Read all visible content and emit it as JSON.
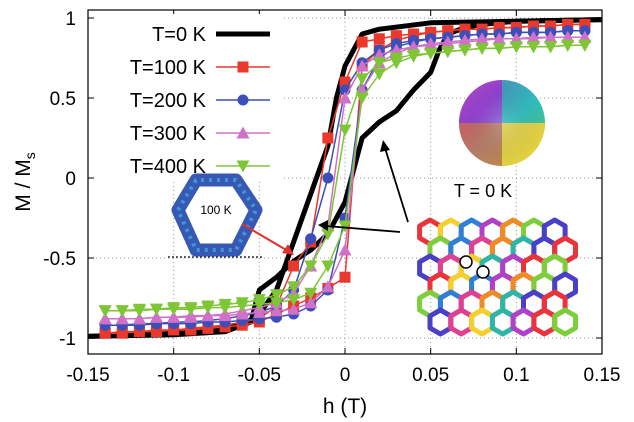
{
  "chart_data": {
    "type": "line",
    "title": "",
    "xlabel": "h (T)",
    "ylabel_main": "M / M",
    "ylabel_sub": "s",
    "xlim": [
      -0.15,
      0.15
    ],
    "ylim": [
      -1.1,
      1.05
    ],
    "x_ticks": [
      "-0.15",
      "-0.1",
      "-0.05",
      "0",
      "0.05",
      "0.1",
      "0.15"
    ],
    "x_tick_values": [
      -0.15,
      -0.1,
      -0.05,
      0,
      0.05,
      0.1,
      0.15
    ],
    "y_ticks": [
      "-1",
      "-0.5",
      "0",
      "0.5",
      "1"
    ],
    "y_tick_values": [
      -1,
      -0.5,
      0,
      0.5,
      1
    ],
    "grid": true,
    "legend_position": "top-left",
    "series": [
      {
        "name": "T=0 K",
        "color": "#000000",
        "marker": "none",
        "up": {
          "x": [
            -0.15,
            -0.1,
            -0.07,
            -0.055,
            -0.05,
            -0.04,
            -0.03,
            -0.02,
            -0.01,
            0.0,
            0.005,
            0.01,
            0.02,
            0.03,
            0.04,
            0.05,
            0.055,
            0.06,
            0.07,
            0.08,
            0.1,
            0.15
          ],
          "y": [
            -0.99,
            -0.98,
            -0.96,
            -0.9,
            -0.7,
            -0.62,
            -0.52,
            -0.45,
            -0.35,
            -0.15,
            0.05,
            0.25,
            0.35,
            0.42,
            0.55,
            0.66,
            0.8,
            0.9,
            0.94,
            0.96,
            0.98,
            0.99
          ]
        },
        "down": {
          "x": [
            0.15,
            0.1,
            0.05,
            0.02,
            0.01,
            0.0,
            -0.005,
            -0.01,
            -0.02,
            -0.03,
            -0.04,
            -0.05,
            -0.06,
            -0.08,
            -0.1,
            -0.15
          ],
          "y": [
            0.99,
            0.98,
            0.97,
            0.93,
            0.9,
            0.7,
            0.5,
            0.2,
            -0.1,
            -0.4,
            -0.7,
            -0.85,
            -0.92,
            -0.95,
            -0.97,
            -0.99
          ]
        }
      },
      {
        "name": "T=100 K",
        "color": "#e8392c",
        "marker": "square",
        "up": {
          "x": [
            -0.14,
            -0.13,
            -0.12,
            -0.11,
            -0.1,
            -0.09,
            -0.08,
            -0.07,
            -0.06,
            -0.05,
            -0.04,
            -0.03,
            -0.02,
            -0.01,
            0.0,
            0.01,
            0.02,
            0.03,
            0.04,
            0.05,
            0.06,
            0.07,
            0.08,
            0.09,
            0.1,
            0.11,
            0.12,
            0.13,
            0.14
          ],
          "y": [
            -0.97,
            -0.97,
            -0.96,
            -0.96,
            -0.95,
            -0.95,
            -0.94,
            -0.93,
            -0.92,
            -0.9,
            -0.85,
            -0.8,
            -0.75,
            -0.69,
            -0.62,
            0.7,
            0.8,
            0.86,
            0.89,
            0.91,
            0.92,
            0.93,
            0.93,
            0.94,
            0.94,
            0.95,
            0.95,
            0.96,
            0.96
          ]
        },
        "down": {
          "x": [
            0.14,
            0.13,
            0.12,
            0.11,
            0.1,
            0.09,
            0.08,
            0.07,
            0.06,
            0.05,
            0.04,
            0.03,
            0.02,
            0.01,
            0.0,
            -0.01,
            -0.02,
            -0.03,
            -0.04,
            -0.05,
            -0.06,
            -0.07,
            -0.08,
            -0.09,
            -0.1,
            -0.11,
            -0.12,
            -0.13,
            -0.14
          ],
          "y": [
            0.96,
            0.96,
            0.95,
            0.95,
            0.94,
            0.94,
            0.93,
            0.93,
            0.92,
            0.91,
            0.9,
            0.89,
            0.87,
            0.85,
            0.6,
            0.25,
            -0.4,
            -0.55,
            -0.8,
            -0.88,
            -0.9,
            -0.92,
            -0.93,
            -0.94,
            -0.95,
            -0.95,
            -0.96,
            -0.96,
            -0.97
          ]
        }
      },
      {
        "name": "T=200 K",
        "color": "#3c4fb8",
        "marker": "circle",
        "up": {
          "x": [
            -0.14,
            -0.13,
            -0.12,
            -0.11,
            -0.1,
            -0.09,
            -0.08,
            -0.07,
            -0.06,
            -0.05,
            -0.04,
            -0.03,
            -0.02,
            -0.01,
            0.0,
            0.01,
            0.02,
            0.03,
            0.04,
            0.05,
            0.06,
            0.07,
            0.08,
            0.09,
            0.1,
            0.11,
            0.12,
            0.13,
            0.14
          ],
          "y": [
            -0.92,
            -0.92,
            -0.92,
            -0.91,
            -0.91,
            -0.91,
            -0.9,
            -0.9,
            -0.89,
            -0.88,
            -0.87,
            -0.85,
            -0.8,
            -0.7,
            -0.25,
            0.55,
            0.75,
            0.82,
            0.85,
            0.87,
            0.88,
            0.89,
            0.9,
            0.9,
            0.91,
            0.91,
            0.91,
            0.92,
            0.92
          ]
        },
        "down": {
          "x": [
            0.14,
            0.13,
            0.12,
            0.11,
            0.1,
            0.09,
            0.08,
            0.07,
            0.06,
            0.05,
            0.04,
            0.03,
            0.02,
            0.01,
            0.0,
            -0.01,
            -0.02,
            -0.03,
            -0.04,
            -0.05,
            -0.06,
            -0.07,
            -0.08,
            -0.09,
            -0.1,
            -0.11,
            -0.12,
            -0.13,
            -0.14
          ],
          "y": [
            0.92,
            0.92,
            0.91,
            0.91,
            0.91,
            0.9,
            0.9,
            0.89,
            0.88,
            0.87,
            0.86,
            0.84,
            0.8,
            0.72,
            0.55,
            0.0,
            -0.38,
            -0.7,
            -0.8,
            -0.84,
            -0.86,
            -0.88,
            -0.89,
            -0.9,
            -0.9,
            -0.91,
            -0.91,
            -0.92,
            -0.92
          ]
        }
      },
      {
        "name": "T=300 K",
        "color": "#d070c8",
        "marker": "triangle",
        "up": {
          "x": [
            -0.14,
            -0.13,
            -0.12,
            -0.11,
            -0.1,
            -0.09,
            -0.08,
            -0.07,
            -0.06,
            -0.05,
            -0.04,
            -0.03,
            -0.02,
            -0.01,
            0.0,
            0.01,
            0.02,
            0.03,
            0.04,
            0.05,
            0.06,
            0.07,
            0.08,
            0.09,
            0.1,
            0.11,
            0.12,
            0.13,
            0.14
          ],
          "y": [
            -0.88,
            -0.88,
            -0.88,
            -0.87,
            -0.87,
            -0.87,
            -0.86,
            -0.86,
            -0.85,
            -0.84,
            -0.83,
            -0.82,
            -0.78,
            -0.68,
            -0.45,
            0.55,
            0.72,
            0.78,
            0.82,
            0.84,
            0.85,
            0.86,
            0.87,
            0.87,
            0.87,
            0.88,
            0.88,
            0.88,
            0.88
          ]
        },
        "down": {
          "x": [
            0.14,
            0.13,
            0.12,
            0.11,
            0.1,
            0.09,
            0.08,
            0.07,
            0.06,
            0.05,
            0.04,
            0.03,
            0.02,
            0.01,
            0.0,
            -0.01,
            -0.02,
            -0.03,
            -0.04,
            -0.05,
            -0.06,
            -0.07,
            -0.08,
            -0.09,
            -0.1,
            -0.11,
            -0.12,
            -0.13,
            -0.14
          ],
          "y": [
            0.88,
            0.88,
            0.88,
            0.87,
            0.87,
            0.87,
            0.86,
            0.85,
            0.84,
            0.83,
            0.82,
            0.8,
            0.77,
            0.7,
            0.5,
            -0.3,
            -0.55,
            -0.72,
            -0.78,
            -0.81,
            -0.83,
            -0.85,
            -0.86,
            -0.86,
            -0.87,
            -0.87,
            -0.88,
            -0.88,
            -0.88
          ]
        }
      },
      {
        "name": "T=400 K",
        "color": "#7ec636",
        "marker": "triangle-down",
        "up": {
          "x": [
            -0.14,
            -0.13,
            -0.12,
            -0.11,
            -0.1,
            -0.09,
            -0.08,
            -0.07,
            -0.06,
            -0.05,
            -0.04,
            -0.03,
            -0.02,
            -0.01,
            0.0,
            0.01,
            0.02,
            0.03,
            0.04,
            0.05,
            0.06,
            0.07,
            0.08,
            0.09,
            0.1,
            0.11,
            0.12,
            0.13,
            0.14
          ],
          "y": [
            -0.83,
            -0.83,
            -0.83,
            -0.82,
            -0.82,
            -0.82,
            -0.81,
            -0.81,
            -0.8,
            -0.79,
            -0.78,
            -0.76,
            -0.72,
            -0.55,
            -0.3,
            0.5,
            0.65,
            0.72,
            0.76,
            0.78,
            0.79,
            0.8,
            0.81,
            0.81,
            0.82,
            0.82,
            0.82,
            0.83,
            0.83
          ]
        },
        "down": {
          "x": [
            0.14,
            0.13,
            0.12,
            0.11,
            0.1,
            0.09,
            0.08,
            0.07,
            0.06,
            0.05,
            0.04,
            0.03,
            0.02,
            0.01,
            0.0,
            -0.01,
            -0.02,
            -0.03,
            -0.04,
            -0.05,
            -0.06,
            -0.07,
            -0.08,
            -0.09,
            -0.1,
            -0.11,
            -0.12,
            -0.13,
            -0.14
          ],
          "y": [
            0.83,
            0.83,
            0.82,
            0.82,
            0.82,
            0.81,
            0.81,
            0.8,
            0.79,
            0.78,
            0.77,
            0.75,
            0.72,
            0.62,
            0.3,
            -0.35,
            -0.55,
            -0.68,
            -0.73,
            -0.76,
            -0.78,
            -0.79,
            -0.8,
            -0.81,
            -0.81,
            -0.82,
            -0.82,
            -0.83,
            -0.83
          ]
        }
      }
    ],
    "annotations": {
      "inset_temperature_label": "100 K",
      "inset_state_label": "T = 0 K"
    }
  }
}
